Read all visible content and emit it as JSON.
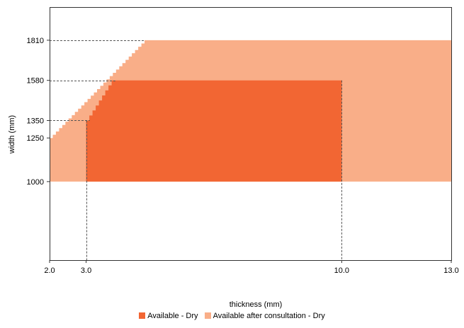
{
  "chart_data": {
    "type": "area",
    "xlabel": "thickness (mm)",
    "ylabel": "width (mm)",
    "x_ticks": [
      "2.0",
      "3.0",
      "10.0",
      "13.0"
    ],
    "x_tick_values": [
      2.0,
      3.0,
      10.0,
      13.0
    ],
    "y_ticks": [
      "1000",
      "1250",
      "1350",
      "1580",
      "1810"
    ],
    "y_tick_values": [
      1000,
      1250,
      1350,
      1580,
      1810
    ],
    "xlim": [
      2.0,
      13.0
    ],
    "ylim": [
      550,
      2000
    ],
    "grid": false,
    "legend_position": "bottom",
    "reference_lines": {
      "horizontal": [
        {
          "y": 1350,
          "x_from": 2.0,
          "x_to": 3.1
        },
        {
          "y": 1580,
          "x_from": 2.0,
          "x_to": 3.8
        },
        {
          "y": 1810,
          "x_from": 2.0,
          "x_to": 4.6
        }
      ],
      "vertical": [
        {
          "x": 3.0,
          "y_to": 1350
        },
        {
          "x": 10.0,
          "y_to": 1580
        }
      ]
    },
    "series": [
      {
        "name": "Available after consultation - Dry",
        "color": "#f9ae88",
        "y_min": 1000,
        "edge": [
          [
            2.0,
            1250
          ],
          [
            4.6,
            1810
          ],
          [
            13.0,
            1810
          ]
        ]
      },
      {
        "name": "Available - Dry",
        "color": "#f26633",
        "y_min": 1000,
        "edge": [
          [
            3.0,
            1350
          ],
          [
            3.7,
            1580
          ],
          [
            10.0,
            1580
          ]
        ]
      }
    ]
  },
  "legend": {
    "items": [
      {
        "label": "Available - Dry",
        "color": "#f26633"
      },
      {
        "label": "Available after consultation - Dry",
        "color": "#f9ae88"
      }
    ]
  }
}
